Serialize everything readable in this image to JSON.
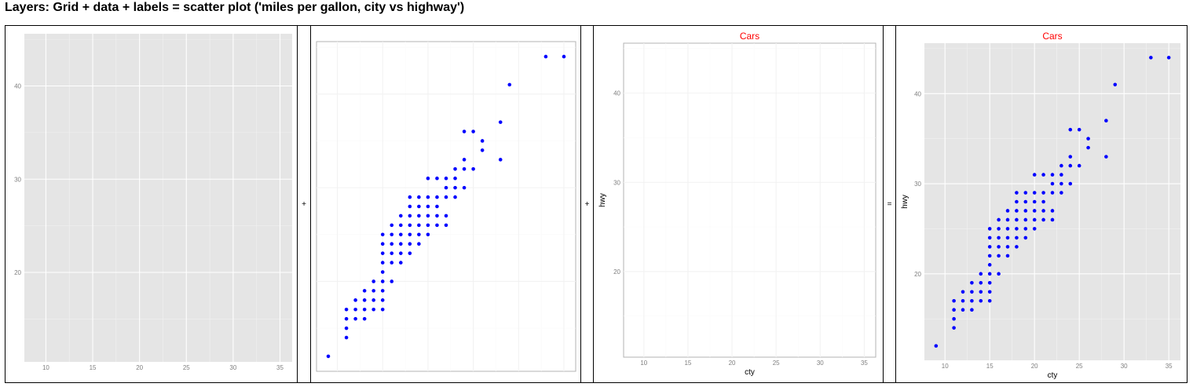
{
  "header": {
    "title": "Layers: Grid + data + labels = scatter plot ('miles per gallon, city vs highway')"
  },
  "operators": [
    "+",
    "+",
    "="
  ],
  "colors": {
    "points": "#0000ff",
    "panel_gray": "#e5e5e5",
    "grid_on_gray": "#ffffff",
    "grid_on_white": "#f2f2f2",
    "axis_text": "#7f7f7f",
    "title_red": "#ff0000"
  },
  "chart_data": [
    {
      "type": "scatter",
      "panel": "grid",
      "title": "",
      "xlabel": "",
      "ylabel": "",
      "xlim": [
        7.7,
        36.3
      ],
      "ylim": [
        10.4,
        45.6
      ],
      "x_ticks": [
        10,
        15,
        20,
        25,
        30,
        35
      ],
      "y_ticks": [
        20,
        30,
        40
      ],
      "background": "gray",
      "grid": true,
      "show_points": false,
      "show_tick_labels": true,
      "points": []
    },
    {
      "type": "scatter",
      "panel": "data",
      "title": "",
      "xlabel": "",
      "ylabel": "",
      "xlim": [
        7.7,
        36.3
      ],
      "ylim": [
        10.4,
        45.6
      ],
      "x_ticks": [
        10,
        15,
        20,
        25,
        30,
        35
      ],
      "y_ticks": [
        20,
        30,
        40
      ],
      "background": "white",
      "grid": true,
      "show_points": true,
      "show_tick_labels": false,
      "points": [
        [
          9,
          12
        ],
        [
          11,
          14
        ],
        [
          11,
          15
        ],
        [
          11,
          16
        ],
        [
          11,
          17
        ],
        [
          12,
          16
        ],
        [
          12,
          17
        ],
        [
          12,
          18
        ],
        [
          13,
          16
        ],
        [
          13,
          17
        ],
        [
          13,
          18
        ],
        [
          13,
          19
        ],
        [
          14,
          17
        ],
        [
          14,
          18
        ],
        [
          14,
          19
        ],
        [
          14,
          20
        ],
        [
          15,
          17
        ],
        [
          15,
          18
        ],
        [
          15,
          19
        ],
        [
          15,
          20
        ],
        [
          15,
          21
        ],
        [
          15,
          22
        ],
        [
          15,
          23
        ],
        [
          15,
          24
        ],
        [
          15,
          25
        ],
        [
          16,
          20
        ],
        [
          16,
          22
        ],
        [
          16,
          23
        ],
        [
          16,
          24
        ],
        [
          16,
          25
        ],
        [
          16,
          26
        ],
        [
          17,
          22
        ],
        [
          17,
          23
        ],
        [
          17,
          24
        ],
        [
          17,
          25
        ],
        [
          17,
          26
        ],
        [
          17,
          27
        ],
        [
          18,
          23
        ],
        [
          18,
          24
        ],
        [
          18,
          25
        ],
        [
          18,
          26
        ],
        [
          18,
          27
        ],
        [
          18,
          28
        ],
        [
          18,
          29
        ],
        [
          19,
          24
        ],
        [
          19,
          25
        ],
        [
          19,
          26
        ],
        [
          19,
          27
        ],
        [
          19,
          28
        ],
        [
          19,
          29
        ],
        [
          20,
          25
        ],
        [
          20,
          26
        ],
        [
          20,
          27
        ],
        [
          20,
          28
        ],
        [
          20,
          29
        ],
        [
          20,
          31
        ],
        [
          21,
          26
        ],
        [
          21,
          27
        ],
        [
          21,
          28
        ],
        [
          21,
          29
        ],
        [
          21,
          31
        ],
        [
          22,
          26
        ],
        [
          22,
          27
        ],
        [
          22,
          29
        ],
        [
          22,
          30
        ],
        [
          22,
          31
        ],
        [
          23,
          29
        ],
        [
          23,
          30
        ],
        [
          23,
          31
        ],
        [
          23,
          32
        ],
        [
          24,
          30
        ],
        [
          24,
          32
        ],
        [
          24,
          33
        ],
        [
          24,
          36
        ],
        [
          25,
          32
        ],
        [
          25,
          36
        ],
        [
          26,
          34
        ],
        [
          26,
          35
        ],
        [
          28,
          33
        ],
        [
          28,
          37
        ],
        [
          29,
          41
        ],
        [
          33,
          44
        ],
        [
          35,
          44
        ]
      ]
    },
    {
      "type": "scatter",
      "panel": "labels",
      "title": "Cars",
      "xlabel": "cty",
      "ylabel": "hwy",
      "xlim": [
        7.7,
        36.3
      ],
      "ylim": [
        10.4,
        45.6
      ],
      "x_ticks": [
        10,
        15,
        20,
        25,
        30,
        35
      ],
      "y_ticks": [
        20,
        30,
        40
      ],
      "background": "white",
      "grid": true,
      "show_points": false,
      "show_tick_labels": true,
      "points": []
    },
    {
      "type": "scatter",
      "panel": "result",
      "title": "Cars",
      "xlabel": "cty",
      "ylabel": "hwy",
      "xlim": [
        7.7,
        36.3
      ],
      "ylim": [
        10.4,
        45.6
      ],
      "x_ticks": [
        10,
        15,
        20,
        25,
        30,
        35
      ],
      "y_ticks": [
        20,
        30,
        40
      ],
      "background": "gray",
      "grid": true,
      "show_points": true,
      "show_tick_labels": true,
      "points": [
        [
          9,
          12
        ],
        [
          11,
          14
        ],
        [
          11,
          15
        ],
        [
          11,
          16
        ],
        [
          11,
          17
        ],
        [
          12,
          16
        ],
        [
          12,
          17
        ],
        [
          12,
          18
        ],
        [
          13,
          16
        ],
        [
          13,
          17
        ],
        [
          13,
          18
        ],
        [
          13,
          19
        ],
        [
          14,
          17
        ],
        [
          14,
          18
        ],
        [
          14,
          19
        ],
        [
          14,
          20
        ],
        [
          15,
          17
        ],
        [
          15,
          18
        ],
        [
          15,
          19
        ],
        [
          15,
          20
        ],
        [
          15,
          21
        ],
        [
          15,
          22
        ],
        [
          15,
          23
        ],
        [
          15,
          24
        ],
        [
          15,
          25
        ],
        [
          16,
          20
        ],
        [
          16,
          22
        ],
        [
          16,
          23
        ],
        [
          16,
          24
        ],
        [
          16,
          25
        ],
        [
          16,
          26
        ],
        [
          17,
          22
        ],
        [
          17,
          23
        ],
        [
          17,
          24
        ],
        [
          17,
          25
        ],
        [
          17,
          26
        ],
        [
          17,
          27
        ],
        [
          18,
          23
        ],
        [
          18,
          24
        ],
        [
          18,
          25
        ],
        [
          18,
          26
        ],
        [
          18,
          27
        ],
        [
          18,
          28
        ],
        [
          18,
          29
        ],
        [
          19,
          24
        ],
        [
          19,
          25
        ],
        [
          19,
          26
        ],
        [
          19,
          27
        ],
        [
          19,
          28
        ],
        [
          19,
          29
        ],
        [
          20,
          25
        ],
        [
          20,
          26
        ],
        [
          20,
          27
        ],
        [
          20,
          28
        ],
        [
          20,
          29
        ],
        [
          20,
          31
        ],
        [
          21,
          26
        ],
        [
          21,
          27
        ],
        [
          21,
          28
        ],
        [
          21,
          29
        ],
        [
          21,
          31
        ],
        [
          22,
          26
        ],
        [
          22,
          27
        ],
        [
          22,
          29
        ],
        [
          22,
          30
        ],
        [
          22,
          31
        ],
        [
          23,
          29
        ],
        [
          23,
          30
        ],
        [
          23,
          31
        ],
        [
          23,
          32
        ],
        [
          24,
          30
        ],
        [
          24,
          32
        ],
        [
          24,
          33
        ],
        [
          24,
          36
        ],
        [
          25,
          32
        ],
        [
          25,
          36
        ],
        [
          26,
          34
        ],
        [
          26,
          35
        ],
        [
          28,
          33
        ],
        [
          28,
          37
        ],
        [
          29,
          41
        ],
        [
          33,
          44
        ],
        [
          35,
          44
        ]
      ]
    }
  ]
}
